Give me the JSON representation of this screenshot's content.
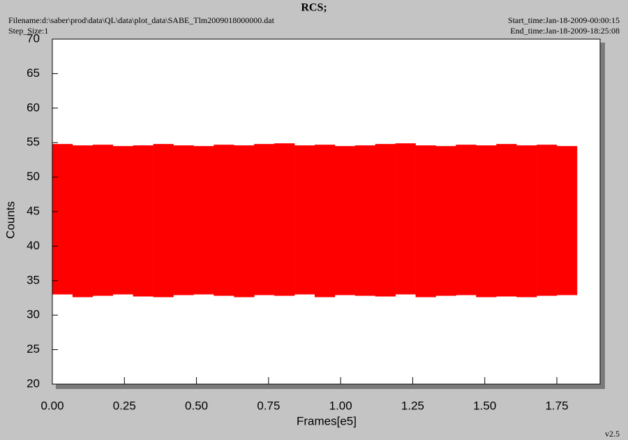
{
  "chart_data": {
    "type": "band",
    "title": "RCS;",
    "filename": "Filename:d:\\saber\\prod\\data\\QL\\data\\plot_data\\SABE_Tlm2009018000000.dat",
    "step_size": "Step_Size:1",
    "start_time": "Start_time:Jan-18-2009-00:00:15",
    "end_time": "End_time:Jan-18-2009-18:25:08",
    "version": "v2.5",
    "xlabel": "Frames[e5]",
    "ylabel": "Counts",
    "xlim": [
      0,
      1.9
    ],
    "ylim": [
      20,
      70
    ],
    "xticks": [
      {
        "value": 0,
        "label": "0.00"
      },
      0.25,
      {
        "value": 0.5,
        "label": "0.50"
      },
      0.75,
      {
        "value": 1,
        "label": "1.00"
      },
      1.25,
      {
        "value": 1.5,
        "label": "1.50"
      },
      1.75
    ],
    "yticks": [
      20,
      25,
      30,
      35,
      40,
      45,
      50,
      55,
      60,
      65,
      70
    ],
    "series": [
      {
        "color": "#ff0000",
        "bins": [
          0,
          0.07,
          0.14,
          0.21,
          0.28,
          0.35,
          0.42,
          0.49,
          0.56,
          0.63,
          0.7,
          0.77,
          0.84,
          0.91,
          0.98,
          1.05,
          1.12,
          1.19,
          1.26,
          1.33,
          1.4,
          1.47,
          1.54,
          1.61,
          1.68,
          1.75,
          1.82
        ],
        "upper": [
          54.8,
          54.6,
          54.7,
          54.5,
          54.6,
          54.8,
          54.6,
          54.5,
          54.7,
          54.6,
          54.8,
          54.9,
          54.6,
          54.7,
          54.5,
          54.6,
          54.8,
          54.9,
          54.6,
          54.5,
          54.7,
          54.6,
          54.8,
          54.6,
          54.7,
          54.5
        ],
        "lower": [
          33,
          32.6,
          32.8,
          33,
          32.7,
          32.6,
          32.9,
          33,
          32.8,
          32.6,
          32.9,
          32.8,
          33,
          32.6,
          32.9,
          32.8,
          32.7,
          33,
          32.6,
          32.8,
          32.9,
          32.6,
          32.7,
          32.6,
          32.8,
          32.9
        ]
      }
    ]
  }
}
